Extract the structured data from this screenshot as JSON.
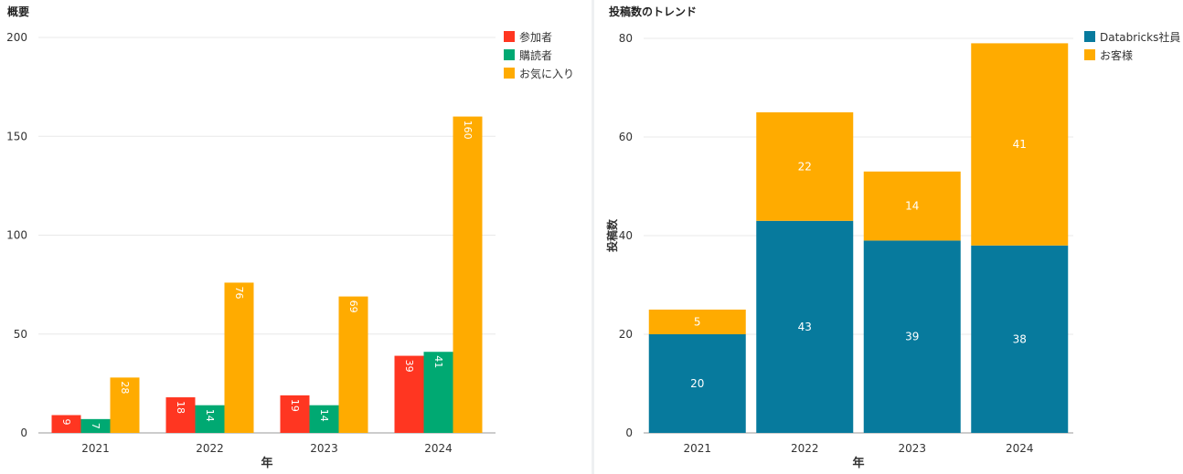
{
  "panels": {
    "left": {
      "title": "概要"
    },
    "right": {
      "title": "投稿数のトレンド"
    }
  },
  "chart_data": [
    {
      "type": "bar",
      "title": "概要",
      "xlabel": "年",
      "ylabel": "",
      "categories": [
        "2021",
        "2022",
        "2023",
        "2024"
      ],
      "ylim": [
        0,
        200
      ],
      "yticks": [
        0,
        50,
        100,
        150,
        200
      ],
      "grid": true,
      "legend_position": "right",
      "series": [
        {
          "name": "参加者",
          "color": "#ff3621",
          "values": [
            9,
            18,
            19,
            39
          ]
        },
        {
          "name": "購読者",
          "color": "#00a972",
          "values": [
            7,
            14,
            14,
            41
          ]
        },
        {
          "name": "お気に入り",
          "color": "#ffab00",
          "values": [
            28,
            76,
            69,
            160
          ]
        }
      ]
    },
    {
      "type": "bar",
      "stacked": true,
      "title": "投稿数のトレンド",
      "xlabel": "年",
      "ylabel": "投稿数",
      "categories": [
        "2021",
        "2022",
        "2023",
        "2024"
      ],
      "ylim": [
        0,
        80
      ],
      "yticks": [
        0,
        20,
        40,
        60,
        80
      ],
      "grid": true,
      "legend_position": "right",
      "series": [
        {
          "name": "Databricks社員",
          "color": "#077a9d",
          "values": [
            20,
            43,
            39,
            38
          ]
        },
        {
          "name": "お客様",
          "color": "#ffab00",
          "values": [
            5,
            22,
            14,
            41
          ]
        }
      ]
    }
  ]
}
